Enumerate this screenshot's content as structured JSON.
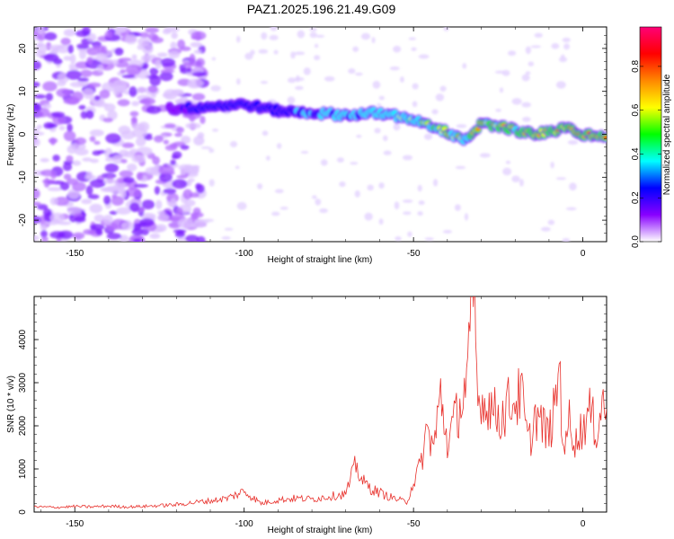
{
  "title": "PAZ1.2025.196.21.49.G09",
  "colors": {
    "snr_line": "#e8302b",
    "frame": "#000000"
  },
  "colorbar": {
    "label": "Normalized spectral amplitude",
    "ticks": [
      0.0,
      0.2,
      0.4,
      0.6,
      0.8
    ],
    "tick_labels": [
      "0.0",
      "0.2",
      "0.4",
      "0.6",
      "0.8"
    ],
    "range": [
      0,
      0.98
    ],
    "colormap": [
      "#ffffff",
      "#8800ff",
      "#0000ff",
      "#00ffff",
      "#00ff00",
      "#ffff00",
      "#ff8800",
      "#ff0000",
      "#ff0077"
    ]
  },
  "chart_data": [
    {
      "type": "heatmap",
      "xlabel": "Height of straight line (km)",
      "ylabel": "Frequency (Hz)",
      "xlim": [
        -162,
        7
      ],
      "ylim": [
        -25,
        25
      ],
      "xticks": [
        -150,
        -100,
        -50,
        0
      ],
      "xtick_labels": [
        "-150",
        "-100",
        "-50",
        "0"
      ],
      "yticks": [
        -20,
        -10,
        0,
        10,
        20
      ],
      "ytick_labels": [
        "-20",
        "-10",
        "0",
        "10",
        "20"
      ],
      "ridge": {
        "x": [
          -118,
          -110,
          -100,
          -90,
          -80,
          -70,
          -60,
          -50,
          -45,
          -40,
          -35,
          -30,
          -25,
          -20,
          -15,
          -10,
          -5,
          0,
          5
        ],
        "y": [
          6,
          6.5,
          7,
          5.5,
          5,
          4.5,
          5,
          3.5,
          2,
          0.5,
          -1.5,
          2.5,
          2,
          1,
          0,
          0.5,
          1.5,
          0,
          -0.5
        ]
      }
    },
    {
      "type": "line",
      "xlabel": "Height of straight line (km)",
      "ylabel": "SNR (10 * v/v)",
      "xlim": [
        -162,
        7
      ],
      "ylim": [
        0,
        5000
      ],
      "xticks": [
        -150,
        -100,
        -50,
        0
      ],
      "xtick_labels": [
        "-150",
        "-100",
        "-50",
        "0"
      ],
      "yticks": [
        0,
        1000,
        2000,
        3000,
        4000
      ],
      "ytick_labels": [
        "0",
        "1000",
        "2000",
        "3000",
        "4000"
      ],
      "x": [
        -162,
        -155,
        -150,
        -145,
        -140,
        -135,
        -130,
        -125,
        -120,
        -115,
        -110,
        -105,
        -100,
        -95,
        -90,
        -85,
        -80,
        -75,
        -70,
        -67,
        -65,
        -62,
        -58,
        -55,
        -52,
        -50,
        -48,
        -46,
        -44,
        -42,
        -40,
        -38,
        -36,
        -34,
        -33,
        -32,
        -31,
        -30,
        -29,
        -28,
        -26,
        -24,
        -22,
        -20,
        -18,
        -17,
        -16,
        -15,
        -14,
        -12,
        -10,
        -8,
        -7,
        -6,
        -5,
        -4,
        -2,
        0,
        2,
        4,
        6,
        7
      ],
      "y": [
        120,
        110,
        130,
        120,
        140,
        120,
        130,
        150,
        170,
        220,
        260,
        320,
        480,
        200,
        280,
        320,
        300,
        360,
        420,
        1100,
        700,
        520,
        380,
        300,
        230,
        700,
        1050,
        1900,
        1500,
        2700,
        1600,
        2100,
        2500,
        3100,
        4400,
        5000,
        2400,
        2800,
        2400,
        2600,
        2300,
        2200,
        2500,
        2600,
        2700,
        2000,
        1600,
        1850,
        2300,
        2000,
        1800,
        2500,
        3600,
        1800,
        1500,
        2200,
        1600,
        2000,
        2300,
        1900,
        2600,
        2400
      ]
    }
  ]
}
